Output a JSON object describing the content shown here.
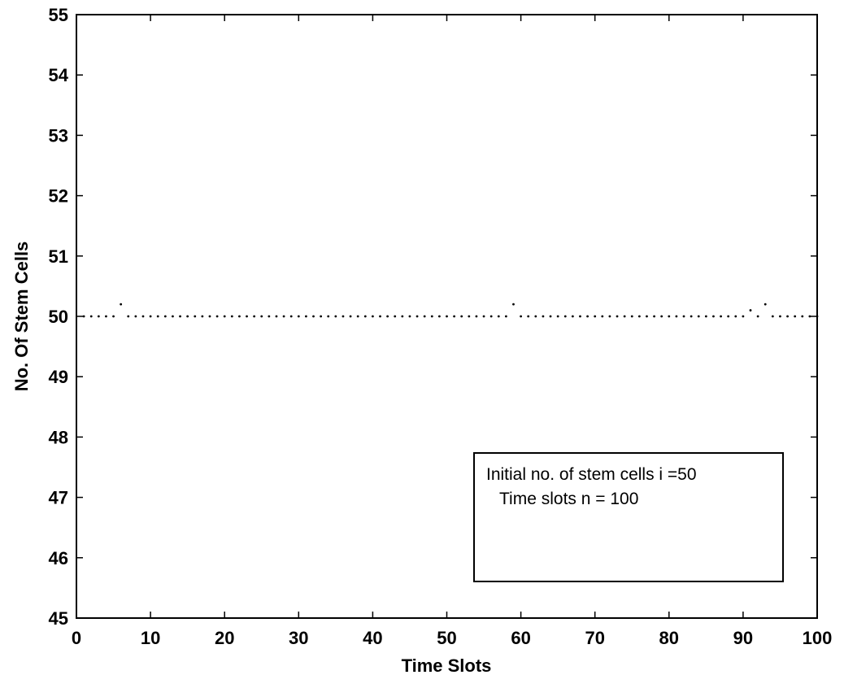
{
  "chart_data": {
    "type": "scatter",
    "title": "",
    "xlabel": "Time Slots",
    "ylabel": "No. Of Stem Cells",
    "xlim": [
      0,
      100
    ],
    "ylim": [
      45,
      55
    ],
    "xticks": [
      "0",
      "10",
      "20",
      "30",
      "40",
      "50",
      "60",
      "70",
      "80",
      "90",
      "100"
    ],
    "yticks": [
      "45",
      "46",
      "47",
      "48",
      "49",
      "50",
      "51",
      "52",
      "53",
      "54",
      "55"
    ],
    "grid": false,
    "series": [
      {
        "color": "#000000",
        "x": [
          1,
          2,
          3,
          4,
          5,
          6,
          7,
          8,
          9,
          10,
          11,
          12,
          13,
          14,
          15,
          16,
          17,
          18,
          19,
          20,
          21,
          22,
          23,
          24,
          25,
          26,
          27,
          28,
          29,
          30,
          31,
          32,
          33,
          34,
          35,
          36,
          37,
          38,
          39,
          40,
          41,
          42,
          43,
          44,
          45,
          46,
          47,
          48,
          49,
          50,
          51,
          52,
          53,
          54,
          55,
          56,
          57,
          58,
          59,
          60,
          61,
          62,
          63,
          64,
          65,
          66,
          67,
          68,
          69,
          70,
          71,
          72,
          73,
          74,
          75,
          76,
          77,
          78,
          79,
          80,
          81,
          82,
          83,
          84,
          85,
          86,
          87,
          88,
          89,
          90,
          91,
          92,
          93,
          94,
          95,
          96,
          97,
          98,
          99,
          100
        ],
        "y": [
          50,
          50,
          50,
          50,
          50,
          50.2,
          50,
          50,
          50,
          50,
          50,
          50,
          50,
          50,
          50,
          50,
          50,
          50,
          50,
          50,
          50,
          50,
          50,
          50,
          50,
          50,
          50,
          50,
          50,
          50,
          50,
          50,
          50,
          50,
          50,
          50,
          50,
          50,
          50,
          50,
          50,
          50,
          50,
          50,
          50,
          50,
          50,
          50,
          50,
          50,
          50,
          50,
          50,
          50,
          50,
          50,
          50,
          50,
          50.2,
          50,
          50,
          50,
          50,
          50,
          50,
          50,
          50,
          50,
          50,
          50,
          50,
          50,
          50,
          50,
          50,
          50,
          50,
          50,
          50,
          50,
          50,
          50,
          50,
          50,
          50,
          50,
          50,
          50,
          50,
          50,
          50.1,
          50,
          50.2,
          50,
          50,
          50,
          50,
          50,
          50,
          50
        ]
      }
    ],
    "annotation": {
      "line1": "Initial no. of stem cells i =50",
      "line2": "Time slots n = 100"
    }
  }
}
